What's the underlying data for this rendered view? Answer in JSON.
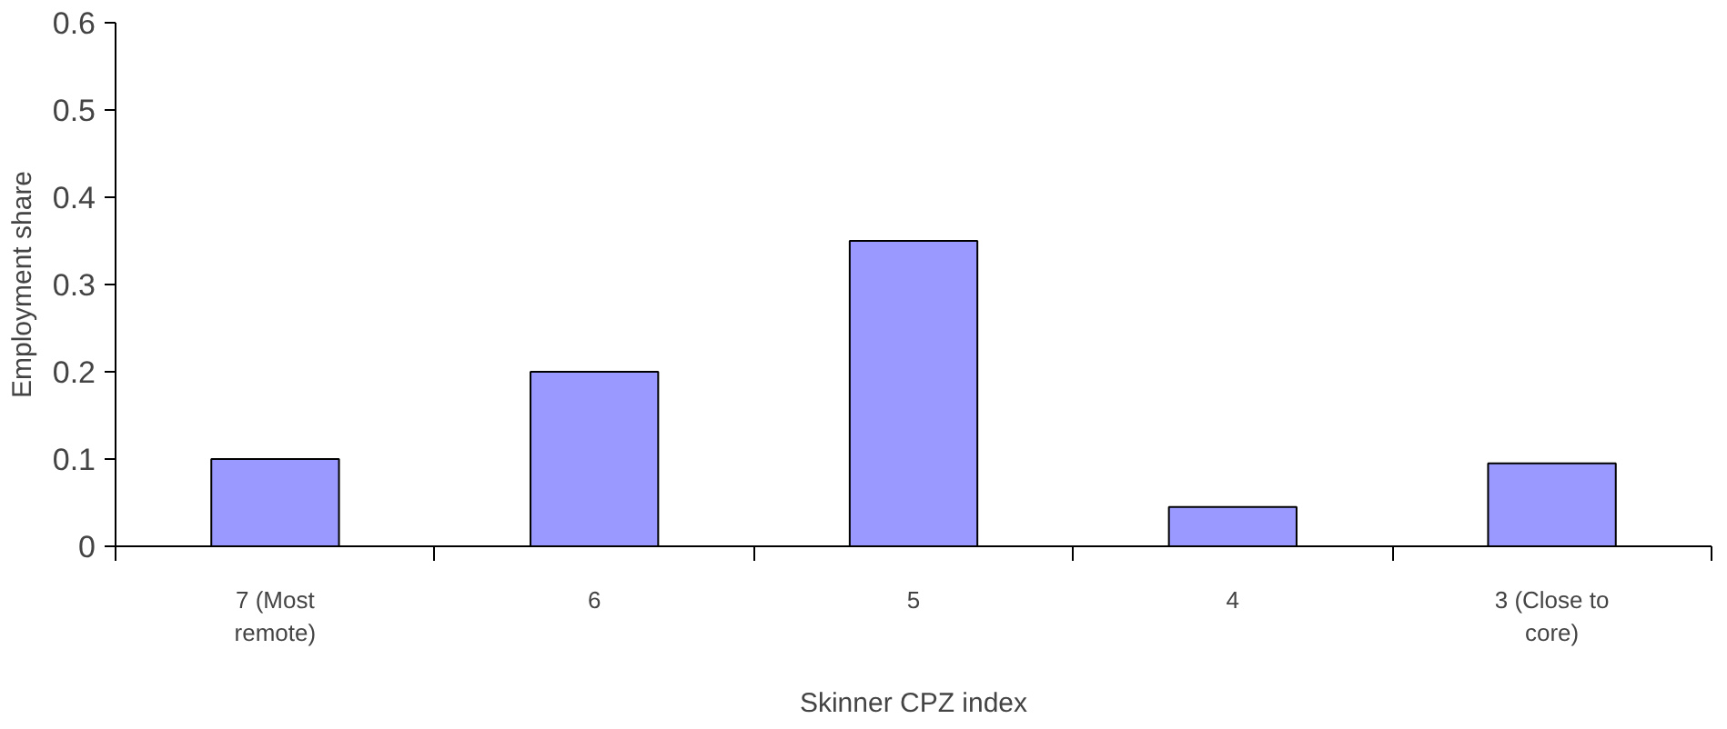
{
  "chart_data": {
    "type": "bar",
    "xlabel": "Skinner CPZ index",
    "ylabel": "Employment share",
    "categories": [
      "7 (Most remote)",
      "6",
      "5",
      "4",
      "3 (Close to core)"
    ],
    "values": [
      0.1,
      0.2,
      0.35,
      0.045,
      0.095
    ],
    "color": "#9999ff",
    "ylim": [
      0,
      0.6
    ],
    "yticks": [
      0,
      0.1,
      0.2,
      0.3,
      0.4,
      0.5,
      0.6
    ],
    "grid": false
  }
}
